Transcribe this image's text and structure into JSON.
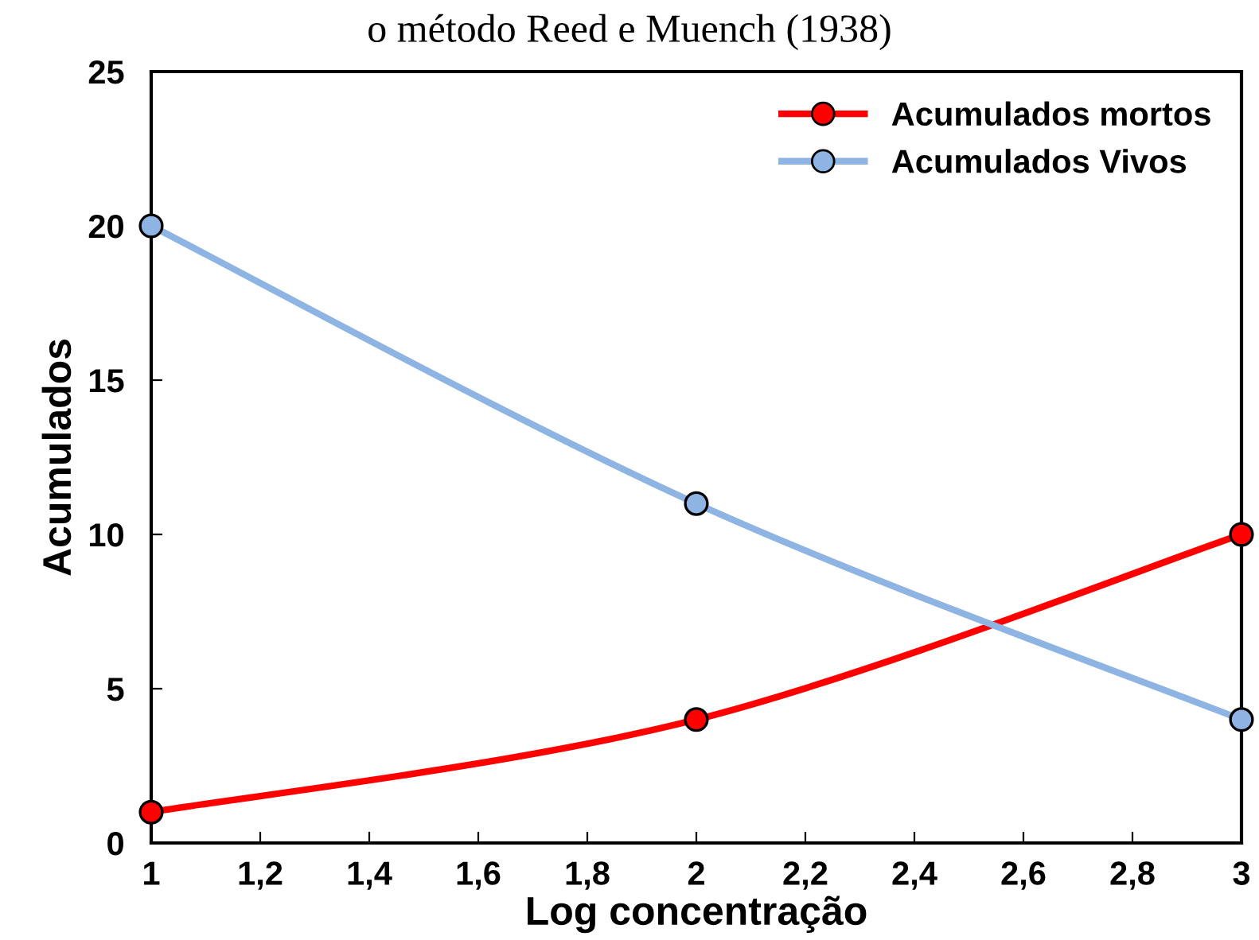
{
  "chart_data": {
    "type": "line",
    "title": "o método Reed e Muench (1938)",
    "xlabel": "Log concentração",
    "ylabel": "Acumulados",
    "series": [
      {
        "name": "Acumulados mortos",
        "color": "#ff0000",
        "x": [
          1,
          2,
          3
        ],
        "values": [
          1,
          4,
          10
        ]
      },
      {
        "name": "Acumulados Vivos",
        "color": "#8eb4e3",
        "x": [
          1,
          2,
          3
        ],
        "values": [
          20,
          11,
          4
        ]
      }
    ],
    "xlim": [
      1,
      3
    ],
    "xticks": [
      1,
      {
        "value": 1.2,
        "label": "1,2"
      },
      {
        "value": 1.4,
        "label": "1,4"
      },
      {
        "value": 1.6,
        "label": "1,6"
      },
      {
        "value": 1.8,
        "label": "1,8"
      },
      2,
      {
        "value": 2.2,
        "label": "2,2"
      },
      {
        "value": 2.4,
        "label": "2,4"
      },
      {
        "value": 2.6,
        "label": "2,6"
      },
      {
        "value": 2.8,
        "label": "2,8"
      },
      3
    ],
    "ylim": [
      0,
      25
    ],
    "yticks": [
      0,
      5,
      10,
      15,
      20,
      25
    ],
    "grid": false,
    "legend": "top right",
    "marker": "circle",
    "line_style": "solid"
  }
}
